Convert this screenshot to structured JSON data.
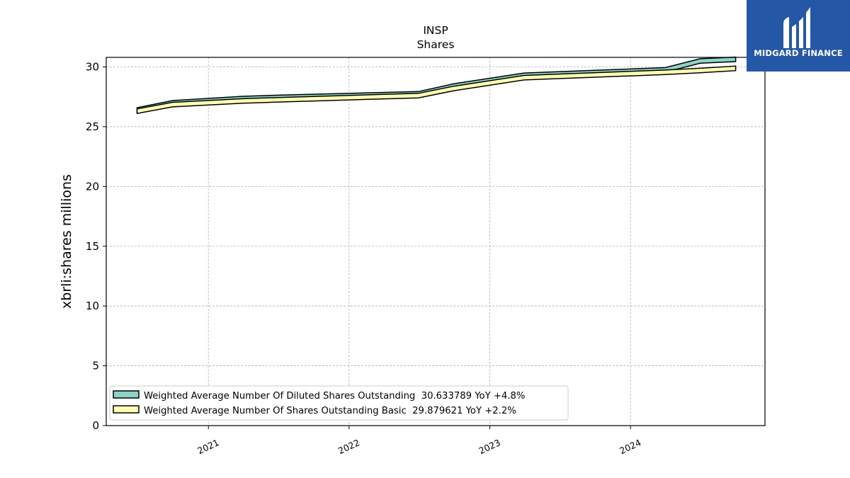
{
  "chart_data": {
    "type": "line",
    "title": "INSP",
    "subtitle": "Shares",
    "ylabel": "xbrli:shares millions",
    "xlabel": "",
    "ylim": [
      0,
      30.8
    ],
    "xlim": [
      "2020-04-11",
      "2024-12-15"
    ],
    "yticks": [
      0,
      5,
      10,
      15,
      20,
      25,
      30
    ],
    "xticks": [
      "2021",
      "2022",
      "2023",
      "2024"
    ],
    "grid": true,
    "legend_position": "lower-left",
    "series": [
      {
        "name": "Weighted Average Number Of Diluted Shares Outstanding  30.633789 YoY +4.8%",
        "color": "#8dd3c7",
        "dates": [
          "2020-06-30",
          "2020-09-30",
          "2021-03-31",
          "2021-06-30",
          "2022-06-30",
          "2022-09-30",
          "2023-03-31",
          "2024-03-31",
          "2024-06-30",
          "2024-09-30"
        ],
        "values": [
          26.4,
          27.0,
          27.35,
          27.45,
          27.75,
          28.4,
          29.3,
          29.75,
          30.5,
          30.633789
        ]
      },
      {
        "name": "Weighted Average Number Of Shares Outstanding Basic  29.879621 YoY +2.2%",
        "color": "#ffffb3",
        "dates": [
          "2020-06-30",
          "2020-09-30",
          "2021-03-31",
          "2021-06-30",
          "2022-06-30",
          "2022-09-30",
          "2023-03-31",
          "2024-03-31",
          "2024-06-30",
          "2024-09-30"
        ],
        "values": [
          26.3,
          26.85,
          27.15,
          27.25,
          27.6,
          28.2,
          29.1,
          29.55,
          29.7,
          29.879621
        ]
      }
    ]
  },
  "logo": {
    "text": "MIDGARD FINANCE",
    "icon": "midgard-logo-icon",
    "bg": "#2557a7"
  }
}
